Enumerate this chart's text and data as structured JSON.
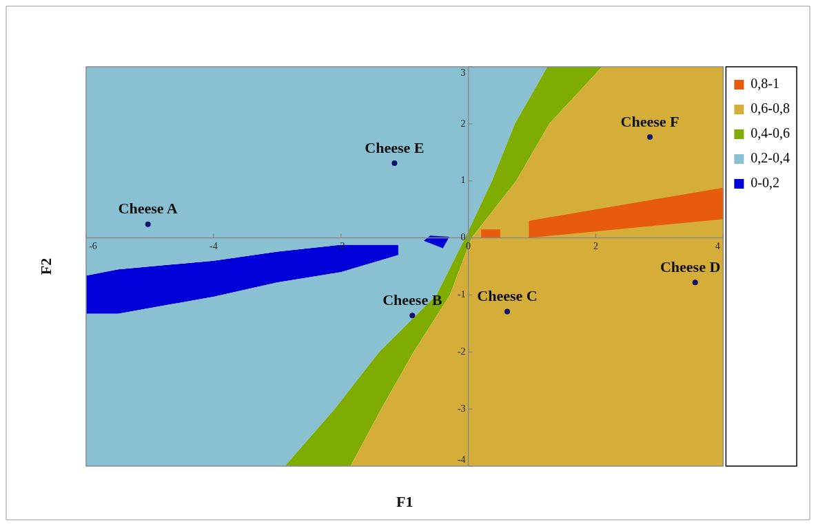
{
  "chart_data": {
    "type": "area",
    "xlabel": "F1",
    "ylabel": "F2",
    "xlim": [
      -6,
      4
    ],
    "xticks": [
      -6,
      -4,
      -2,
      0,
      2,
      4
    ],
    "ylim": [
      -4,
      3
    ],
    "yticks": [
      -4,
      -3,
      -2,
      -1,
      0,
      1,
      2,
      3
    ],
    "grid": false,
    "legend": "top right",
    "series": [
      {
        "type": "scatter",
        "color": "#12126e",
        "x": [
          -5.03,
          -0.88,
          0.61,
          3.56,
          -1.16,
          2.85
        ],
        "values": [
          0.24,
          -1.36,
          -1.29,
          -0.78,
          1.31,
          1.77
        ]
      },
      {
        "name": "0,8-1",
        "color": "#e85a0c",
        "x": [
          0.95,
          0.95,
          4,
          4
        ],
        "values": [
          0,
          0.3,
          0.88,
          0.33
        ]
      },
      {
        "color": "#e85a0c",
        "x": [
          0.2,
          0.2,
          0.5,
          0.5
        ],
        "values": [
          0,
          0.15,
          0.15,
          0
        ]
      },
      {
        "name": "0,6-0,8",
        "color": "#d4ae38",
        "x": [
          2.1,
          4,
          4,
          -1.85,
          -1.37,
          -0.86,
          -0.29,
          0.05,
          0.75,
          1.27
        ],
        "values": [
          3,
          3,
          -4,
          -4,
          -3,
          -2,
          -1,
          0,
          1,
          2
        ]
      },
      {
        "name": "0,4-0,6",
        "color": "#7fac00",
        "x": [
          1.24,
          2.1,
          1.27,
          0.75,
          0.05,
          -0.29,
          -0.86,
          -1.37,
          -1.85,
          -2.88,
          -2.1,
          -1.4,
          -0.5,
          -0.05,
          0.37,
          0.73
        ],
        "values": [
          3,
          3,
          2,
          1,
          0,
          -1,
          -2,
          -3,
          -4,
          -4,
          -3,
          -2,
          -1,
          0,
          1,
          2
        ]
      },
      {
        "color": "#0000d8",
        "x": [
          -0.7,
          -0.6,
          -0.3,
          -0.4
        ],
        "values": [
          -0.05,
          0.04,
          0.02,
          -0.18
        ]
      },
      {
        "name": "0,2-0,4",
        "color": "#89c0d2",
        "x": [
          -6,
          1.24,
          0.73,
          0.37,
          -0.05,
          -0.5,
          -1.4,
          -2.1,
          -2.88,
          -6,
          -6,
          -5.5,
          -4,
          -3,
          -2,
          -1.1,
          -1.1,
          -2,
          -3,
          -4,
          -5.5,
          -6
        ],
        "values": [
          3,
          3,
          2,
          1,
          0,
          -1,
          -2,
          -3,
          -4,
          -4,
          -1.33,
          -1.33,
          -1.03,
          -0.78,
          -0.6,
          -0.3,
          -0.12,
          -0.12,
          -0.24,
          -0.4,
          -0.55,
          -0.66
        ]
      },
      {
        "name": "0-0,2",
        "color": "#0000d8",
        "x": [
          -6,
          -5.5,
          -4,
          -3,
          -2,
          -1.1,
          -1.1,
          -2,
          -3,
          -4,
          -5.5,
          -6
        ],
        "values": [
          -1.33,
          -1.33,
          -1.03,
          -0.78,
          -0.6,
          -0.3,
          -0.12,
          -0.12,
          -0.24,
          -0.4,
          -0.55,
          -0.66
        ]
      }
    ],
    "annotations": [
      {
        "text": "Cheese A",
        "x": -5.03,
        "y": 0.24
      },
      {
        "text": "Cheese B",
        "x": -0.88,
        "y": -1.36
      },
      {
        "text": "Cheese C",
        "x": 0.61,
        "y": -1.29
      },
      {
        "text": "Cheese D",
        "x": 3.56,
        "y": -0.78
      },
      {
        "text": "Cheese E",
        "x": -1.16,
        "y": 1.31
      },
      {
        "text": "Cheese F",
        "x": 2.85,
        "y": 1.77
      }
    ]
  }
}
